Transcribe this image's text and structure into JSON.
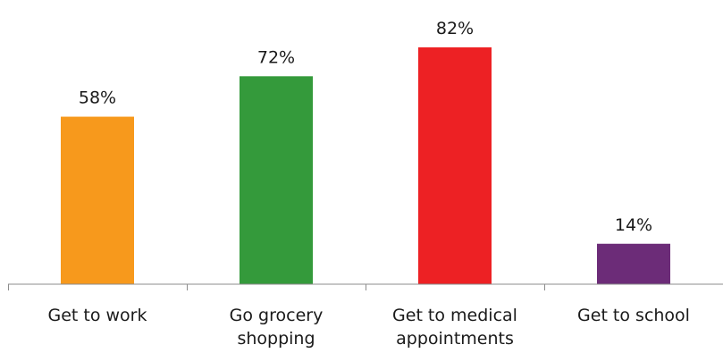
{
  "chart_data": {
    "type": "bar",
    "categories": [
      [
        "Get to work"
      ],
      [
        "Go grocery",
        "shopping"
      ],
      [
        "Get to medical",
        "appointments"
      ],
      [
        "Get to school"
      ]
    ],
    "values": [
      58,
      72,
      82,
      14
    ],
    "data_labels": [
      "58%",
      "72%",
      "82%",
      "14%"
    ],
    "colors": [
      "#F7991C",
      "#349A3B",
      "#ED2124",
      "#6C2C78"
    ],
    "title": "",
    "xlabel": "",
    "ylabel": "",
    "ylim": [
      0,
      90
    ],
    "grid": false,
    "legend": "none"
  }
}
